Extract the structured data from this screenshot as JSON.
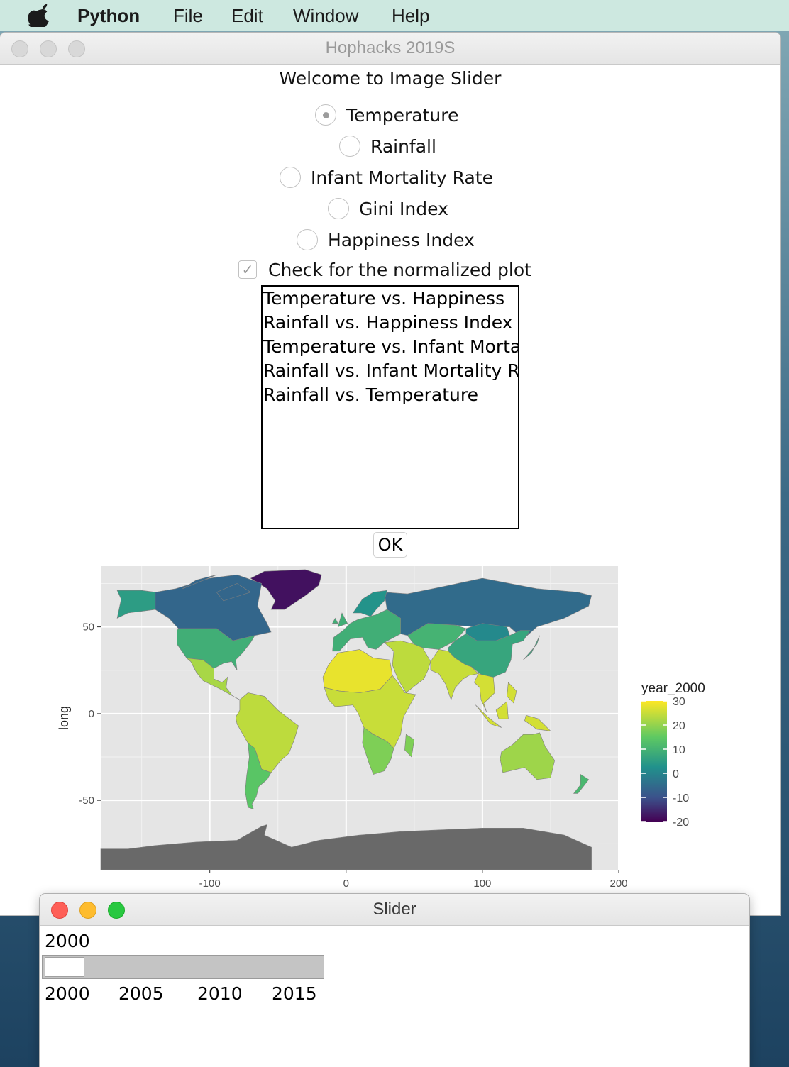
{
  "menubar": {
    "app_name": "Python",
    "items": [
      "File",
      "Edit",
      "Window",
      "Help"
    ]
  },
  "main_window": {
    "title": "Hophacks 2019S",
    "welcome": "Welcome to Image Slider",
    "radio_options": [
      {
        "label": "Temperature",
        "selected": true
      },
      {
        "label": "Rainfall",
        "selected": false
      },
      {
        "label": "Infant Mortality Rate",
        "selected": false
      },
      {
        "label": "Gini Index",
        "selected": false
      },
      {
        "label": "Happiness Index",
        "selected": false
      }
    ],
    "checkbox": {
      "label": "Check for the normalized plot",
      "checked": true
    },
    "listbox_items": [
      "Temperature vs. Happiness",
      "Rainfall vs. Happiness Index",
      "Temperature vs. Infant Mortality Rate",
      "Rainfall vs. Infant Mortality Rate",
      "Rainfall vs. Temperature"
    ],
    "ok_label": "OK"
  },
  "chart_data": {
    "type": "heatmap",
    "subtype": "choropleth world map",
    "title": "",
    "xlabel": "",
    "ylabel": "long",
    "xlim": [
      -180,
      200
    ],
    "ylim": [
      -90,
      85
    ],
    "x_ticks": [
      "-100",
      "0",
      "100",
      "200"
    ],
    "y_ticks": [
      "50",
      "0",
      "-50"
    ],
    "grid": true,
    "legend": {
      "title": "year_2000",
      "placement": "right",
      "ticks": [
        "30",
        "20",
        "10",
        "0",
        "-10",
        "-20"
      ],
      "range": [
        -20,
        30
      ],
      "colormap": "viridis"
    },
    "regions": [
      {
        "name": "Greenland",
        "value": -18
      },
      {
        "name": "Canada",
        "value": -6
      },
      {
        "name": "Russia",
        "value": -5
      },
      {
        "name": "Alaska",
        "value": 5
      },
      {
        "name": "United States",
        "value": 9
      },
      {
        "name": "Scandinavia",
        "value": 3
      },
      {
        "name": "Europe",
        "value": 9
      },
      {
        "name": "Mongolia",
        "value": 1
      },
      {
        "name": "China",
        "value": 7
      },
      {
        "name": "Central Asia",
        "value": 10
      },
      {
        "name": "Mexico",
        "value": 22
      },
      {
        "name": "South America",
        "value": 24
      },
      {
        "name": "Argentina",
        "value": 14
      },
      {
        "name": "Sahara",
        "value": 28
      },
      {
        "name": "Africa",
        "value": 25
      },
      {
        "name": "Southern Africa",
        "value": 18
      },
      {
        "name": "Middle East",
        "value": 24
      },
      {
        "name": "India",
        "value": 25
      },
      {
        "name": "Southeast Asia",
        "value": 26
      },
      {
        "name": "Australia",
        "value": 21
      },
      {
        "name": "New Zealand",
        "value": 11
      },
      {
        "name": "Antarctica",
        "value": null
      }
    ]
  },
  "slider_window": {
    "title": "Slider",
    "value": "2000",
    "position_fraction": 0,
    "tick_labels": [
      "2000",
      "2005",
      "2010",
      "2015"
    ]
  },
  "colors": {
    "menubar_bg": "#cde8e0",
    "panel_bg": "#e5e5e5",
    "missing_fill": "#696969",
    "close": "#fe5f57",
    "minimize": "#febc2e",
    "zoom": "#28c840"
  }
}
